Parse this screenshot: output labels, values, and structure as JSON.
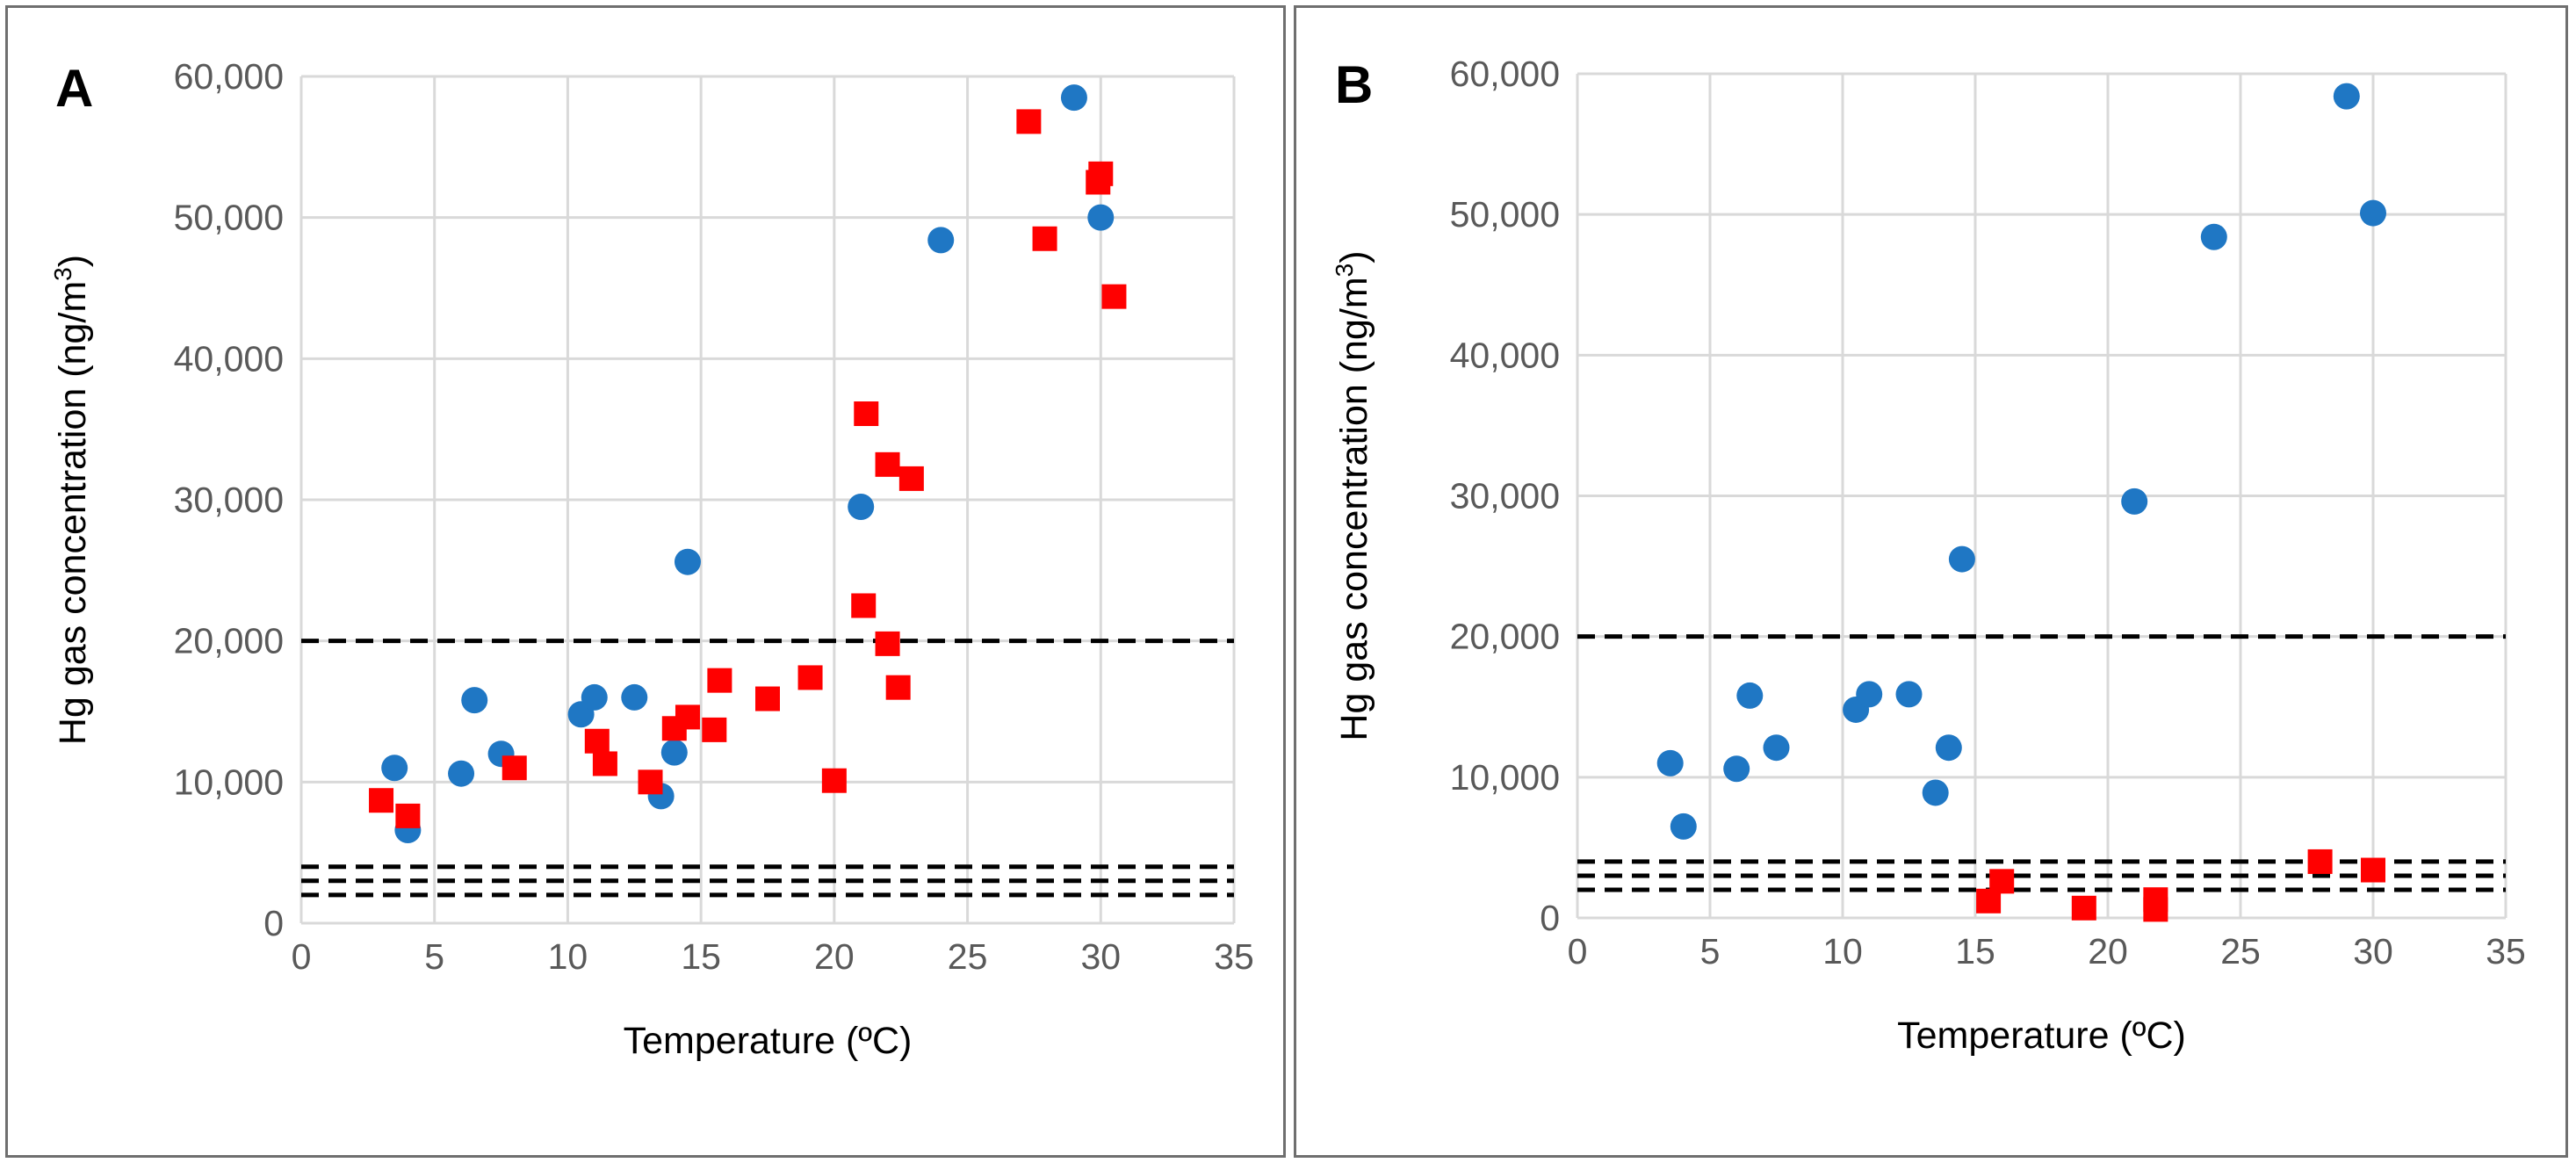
{
  "colors": {
    "series_circle": "#1f77c4",
    "series_square": "#ff0000",
    "gridline": "#d9d9d9",
    "threshold_line": "#000000",
    "tick_text": "#595959"
  },
  "chart_data": [
    {
      "type": "scatter",
      "panel_label": "A",
      "xlabel": "Temperature (ºC)",
      "ylabel_prefix": "Hg gas concentration (ng/m",
      "ylabel_superscript": "3",
      "ylabel_suffix": ")",
      "xlim": [
        0,
        35
      ],
      "ylim": [
        0,
        60000
      ],
      "x_ticks": [
        0,
        5,
        10,
        15,
        20,
        25,
        30,
        35
      ],
      "x_tick_labels": [
        "0",
        "5",
        "10",
        "15",
        "20",
        "25",
        "30",
        "35"
      ],
      "y_ticks": [
        0,
        10000,
        20000,
        30000,
        40000,
        50000,
        60000
      ],
      "y_tick_labels": [
        "0",
        "10,000",
        "20,000",
        "30,000",
        "40,000",
        "50,000",
        "60,000"
      ],
      "grid": true,
      "legend": "none",
      "reference_lines": [
        {
          "y": 20000,
          "style": "dashed"
        },
        {
          "y": 4000,
          "style": "dashed"
        },
        {
          "y": 3000,
          "style": "dashed"
        },
        {
          "y": 2000,
          "style": "dashed"
        }
      ],
      "series": [
        {
          "marker": "circle",
          "color": "#1f77c4",
          "points": [
            [
              3.5,
              11000
            ],
            [
              4.0,
              6600
            ],
            [
              6.0,
              10600
            ],
            [
              6.5,
              15800
            ],
            [
              7.5,
              12000
            ],
            [
              10.5,
              14800
            ],
            [
              11.0,
              16000
            ],
            [
              12.5,
              16000
            ],
            [
              13.5,
              9000
            ],
            [
              14.0,
              12100
            ],
            [
              14.5,
              25600
            ],
            [
              21.0,
              29500
            ],
            [
              24.0,
              48400
            ],
            [
              29.0,
              58500
            ],
            [
              30.0,
              50000
            ]
          ]
        },
        {
          "marker": "square",
          "color": "#ff0000",
          "points": [
            [
              3.0,
              8700
            ],
            [
              4.0,
              7600
            ],
            [
              8.0,
              11000
            ],
            [
              11.1,
              12900
            ],
            [
              11.4,
              11300
            ],
            [
              13.1,
              10000
            ],
            [
              14.0,
              13800
            ],
            [
              14.5,
              14600
            ],
            [
              15.5,
              13700
            ],
            [
              15.7,
              17200
            ],
            [
              17.5,
              15900
            ],
            [
              19.1,
              17400
            ],
            [
              20.0,
              10100
            ],
            [
              21.1,
              22500
            ],
            [
              21.2,
              36100
            ],
            [
              22.0,
              32500
            ],
            [
              22.0,
              19800
            ],
            [
              22.4,
              16700
            ],
            [
              22.9,
              31500
            ],
            [
              27.3,
              56800
            ],
            [
              27.9,
              48500
            ],
            [
              29.9,
              52500
            ],
            [
              30.0,
              53100
            ],
            [
              30.5,
              44400
            ]
          ]
        }
      ]
    },
    {
      "type": "scatter",
      "panel_label": "B",
      "xlabel": "Temperature (ºC)",
      "ylabel_prefix": "Hg gas concentration (ng/m",
      "ylabel_superscript": "3",
      "ylabel_suffix": ")",
      "xlim": [
        0,
        35
      ],
      "ylim": [
        0,
        60000
      ],
      "x_ticks": [
        0,
        5,
        10,
        15,
        20,
        25,
        30,
        35
      ],
      "x_tick_labels": [
        "0",
        "5",
        "10",
        "15",
        "20",
        "25",
        "30",
        "35"
      ],
      "y_ticks": [
        0,
        10000,
        20000,
        30000,
        40000,
        50000,
        60000
      ],
      "y_tick_labels": [
        "0",
        "10,000",
        "20,000",
        "30,000",
        "40,000",
        "50,000",
        "60,000"
      ],
      "grid": true,
      "legend": "none",
      "reference_lines": [
        {
          "y": 20000,
          "style": "dashed"
        },
        {
          "y": 4000,
          "style": "dashed"
        },
        {
          "y": 3000,
          "style": "dashed"
        },
        {
          "y": 2000,
          "style": "dashed"
        }
      ],
      "series": [
        {
          "marker": "circle",
          "color": "#1f77c4",
          "points": [
            [
              3.5,
              11000
            ],
            [
              4.0,
              6500
            ],
            [
              6.0,
              10600
            ],
            [
              6.5,
              15800
            ],
            [
              7.5,
              12100
            ],
            [
              10.5,
              14800
            ],
            [
              11.0,
              15900
            ],
            [
              12.5,
              15900
            ],
            [
              13.5,
              8900
            ],
            [
              14.0,
              12100
            ],
            [
              14.5,
              25500
            ],
            [
              21.0,
              29600
            ],
            [
              24.0,
              48400
            ],
            [
              29.0,
              58400
            ],
            [
              30.0,
              50100
            ]
          ]
        },
        {
          "marker": "square",
          "color": "#ff0000",
          "points": [
            [
              15.5,
              1200
            ],
            [
              16.0,
              2600
            ],
            [
              19.1,
              700
            ],
            [
              21.8,
              1300
            ],
            [
              21.8,
              600
            ],
            [
              28.0,
              4000
            ],
            [
              30.0,
              3400
            ]
          ]
        }
      ]
    }
  ]
}
